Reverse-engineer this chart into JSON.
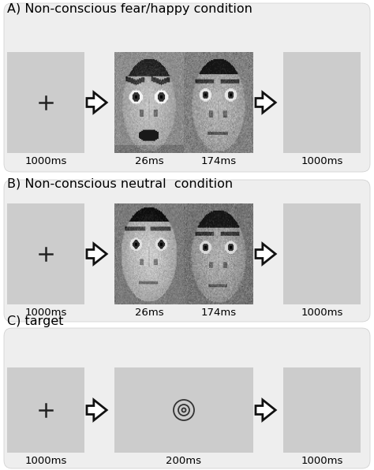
{
  "title_A": "A) Non-conscious fear/happy condition",
  "title_B": "B) Non-conscious neutral  condition",
  "title_C": "C) target",
  "label_A": [
    "1000ms",
    "26ms",
    "174ms",
    "1000ms"
  ],
  "label_B": [
    "1000ms",
    "26ms",
    "174ms",
    "1000ms"
  ],
  "label_C": [
    "1000ms",
    "200ms",
    "1000ms"
  ],
  "bg_white": "#ffffff",
  "panel_bg": "#eeeeee",
  "box_gray": "#cccccc",
  "face_dark_bg": "#888888",
  "arrow_fc": "#ffffff",
  "arrow_ec": "#111111",
  "cross_color": "#222222",
  "target_color": "#333333",
  "font_size_title": 11.5,
  "font_size_label": 9.5
}
